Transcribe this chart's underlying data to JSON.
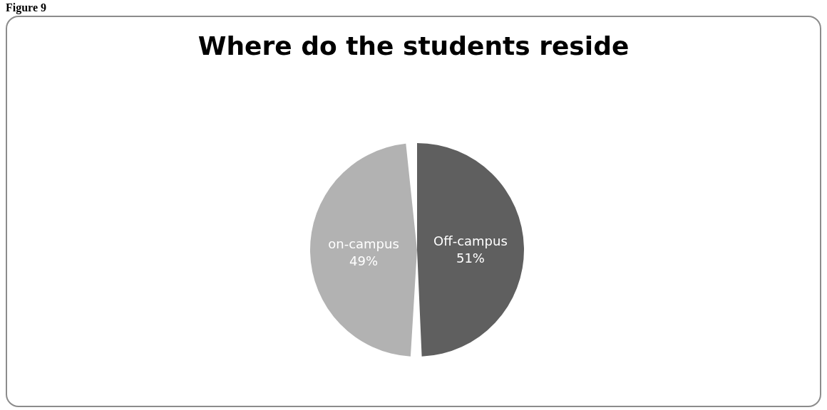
{
  "chart_data": {
    "type": "pie",
    "title": "Where do the students reside",
    "categories": [
      "Off-campus",
      "on-campus"
    ],
    "values": [
      51,
      49
    ],
    "colors": [
      "#5f5f5f",
      "#b2b2b2"
    ],
    "value_labels": [
      "51%",
      "49%"
    ],
    "legend": false,
    "annotations": [
      "Figure 9"
    ]
  }
}
